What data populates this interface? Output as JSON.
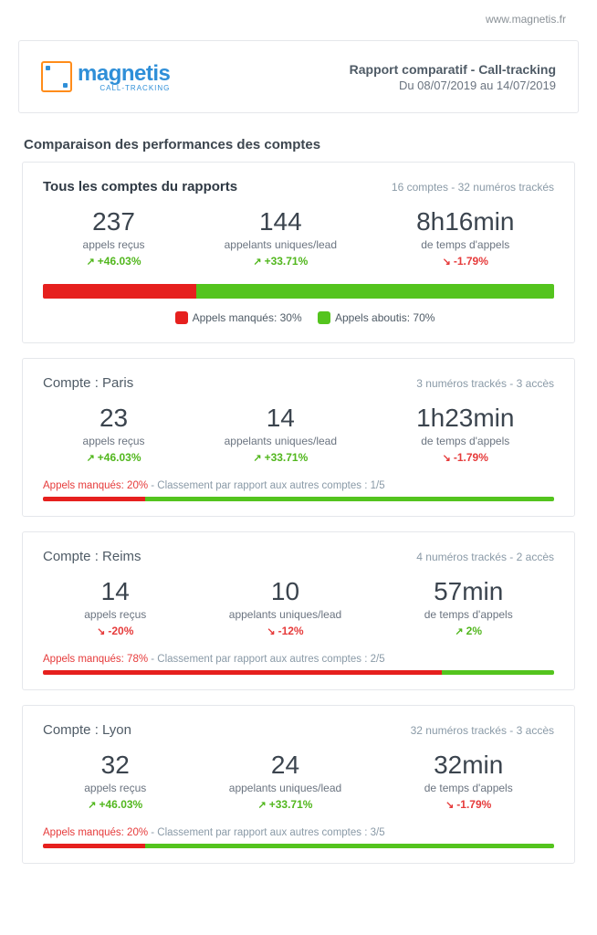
{
  "site_url": "www.magnetis.fr",
  "logo": {
    "name": "magnetis",
    "subtitle": "CALL-TRACKING"
  },
  "header": {
    "title": "Rapport comparatif - Call-tracking",
    "date_range": "Du 08/07/2019 au 14/07/2019"
  },
  "section_title": "Comparaison des performances des comptes",
  "colors": {
    "green": "#54c41e",
    "red": "#e6201e",
    "up_text": "#52b71e",
    "down_text": "#e63b3b"
  },
  "summary": {
    "title": "Tous les comptes du rapports",
    "subtitle": "16 comptes - 32 numéros trackés",
    "metrics": [
      {
        "value": "237",
        "label": "appels reçus",
        "trend": "+46.03%",
        "direction": "up"
      },
      {
        "value": "144",
        "label": "appelants uniques/lead",
        "trend": "+33.71%",
        "direction": "up"
      },
      {
        "value": "8h16min",
        "label": "de temps d'appels",
        "trend": "-1.79%",
        "direction": "down"
      }
    ],
    "bar": {
      "missed_pct": 30,
      "success_pct": 70
    },
    "legend": {
      "missed_label": "Appels manqués: 30%",
      "success_label": "Appels aboutis: 70%"
    }
  },
  "accounts": [
    {
      "title": "Compte : Paris",
      "subtitle": "3 numéros trackés - 3 accès",
      "metrics": [
        {
          "value": "23",
          "label": "appels reçus",
          "trend": "+46.03%",
          "direction": "up"
        },
        {
          "value": "14",
          "label": "appelants uniques/lead",
          "trend": "+33.71%",
          "direction": "up"
        },
        {
          "value": "1h23min",
          "label": "de temps d'appels",
          "trend": "-1.79%",
          "direction": "down"
        }
      ],
      "footer": {
        "text_prefix": "Appels manqués: 20%",
        "text_suffix": " - Classement par rapport aux autres comptes : 1/5",
        "missed_pct": 20
      }
    },
    {
      "title": "Compte : Reims",
      "subtitle": "4 numéros trackés - 2 accès",
      "metrics": [
        {
          "value": "14",
          "label": "appels reçus",
          "trend": "-20%",
          "direction": "down"
        },
        {
          "value": "10",
          "label": "appelants uniques/lead",
          "trend": "-12%",
          "direction": "down"
        },
        {
          "value": "57min",
          "label": "de temps d'appels",
          "trend": "2%",
          "direction": "up"
        }
      ],
      "footer": {
        "text_prefix": "Appels manqués: 78%",
        "text_suffix": " - Classement par rapport aux autres comptes : 2/5",
        "missed_pct": 78
      }
    },
    {
      "title": "Compte : Lyon",
      "subtitle": "32 numéros trackés - 3 accès",
      "metrics": [
        {
          "value": "32",
          "label": "appels reçus",
          "trend": "+46.03%",
          "direction": "up"
        },
        {
          "value": "24",
          "label": "appelants uniques/lead",
          "trend": "+33.71%",
          "direction": "up"
        },
        {
          "value": "32min",
          "label": "de temps d'appels",
          "trend": "-1.79%",
          "direction": "down"
        }
      ],
      "footer": {
        "text_prefix": "Appels manqués: 20%",
        "text_suffix": " - Classement par rapport aux autres comptes : 3/5",
        "missed_pct": 20
      }
    }
  ]
}
